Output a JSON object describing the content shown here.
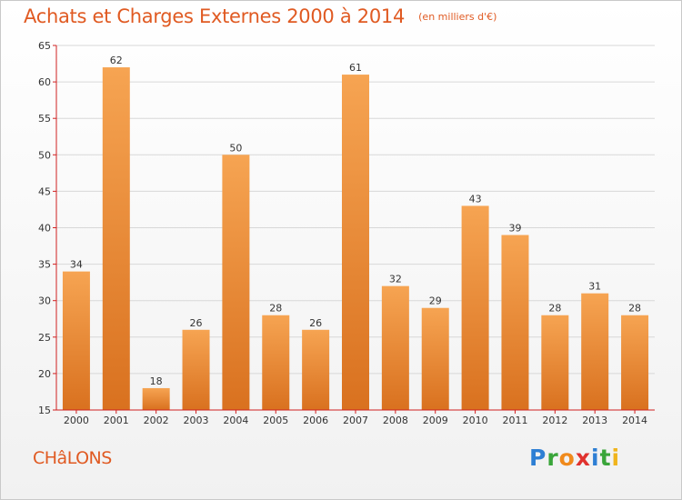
{
  "title": "Achats et Charges Externes 2000 à 2014",
  "subtitle": "(en milliers d'€)",
  "city": "CHâLONS",
  "brand": {
    "letters": [
      {
        "char": "P",
        "color": "#2e7fd4"
      },
      {
        "char": "r",
        "color": "#3aa53a"
      },
      {
        "char": "o",
        "color": "#f08a1c"
      },
      {
        "char": "x",
        "color": "#e0322e"
      },
      {
        "char": "i",
        "color": "#2e7fd4"
      },
      {
        "char": "t",
        "color": "#3aa53a"
      },
      {
        "char": "i",
        "color": "#f0b41c"
      }
    ]
  },
  "colors": {
    "bar_light": "#f6a452",
    "bar_dark": "#d9711f",
    "axis": "#d02020",
    "grid": "#d8d8d8",
    "text": "#333333"
  },
  "chart_data": {
    "type": "bar",
    "title": "Achats et Charges Externes 2000 à 2014",
    "subtitle": "(en milliers d'€)",
    "categories": [
      "2000",
      "2001",
      "2002",
      "2003",
      "2004",
      "2005",
      "2006",
      "2007",
      "2008",
      "2009",
      "2010",
      "2011",
      "2012",
      "2013",
      "2014"
    ],
    "values": [
      34,
      62,
      18,
      26,
      50,
      28,
      26,
      61,
      32,
      29,
      43,
      39,
      28,
      31,
      28
    ],
    "ylim": [
      15,
      65
    ],
    "yticks": [
      15,
      20,
      25,
      30,
      35,
      40,
      45,
      50,
      55,
      60,
      65
    ],
    "grid": true,
    "data_labels": true
  }
}
